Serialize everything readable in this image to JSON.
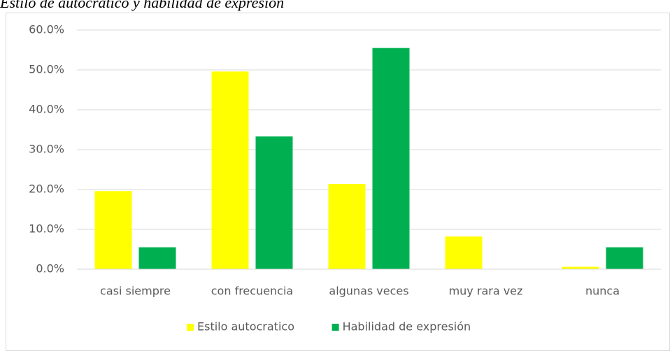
{
  "chart_data": {
    "type": "bar",
    "title": "Estilo de autocrático y habilidad de expresión",
    "categories": [
      "casi siempre",
      "con frecuencia",
      "algunas veces",
      "muy rara vez",
      "nunca"
    ],
    "series": [
      {
        "name": "Estilo autocratico",
        "color": "#ffff00",
        "values": [
          19.6,
          49.6,
          21.4,
          8.2,
          0.6
        ]
      },
      {
        "name": "Habilidad de expresión",
        "color": "#00b050",
        "values": [
          5.5,
          33.3,
          55.5,
          0,
          5.5
        ]
      }
    ],
    "ylim": [
      0,
      60
    ],
    "yticks": [
      {
        "value": 0,
        "label": "0.0%"
      },
      {
        "value": 10,
        "label": "10.0%"
      },
      {
        "value": 20,
        "label": "20.0%"
      },
      {
        "value": 30,
        "label": "30.0%"
      },
      {
        "value": 40,
        "label": "40.0%"
      },
      {
        "value": 50,
        "label": "50.0%"
      },
      {
        "value": 60,
        "label": "60.0%"
      }
    ],
    "grid": true,
    "legend": "bottom"
  }
}
